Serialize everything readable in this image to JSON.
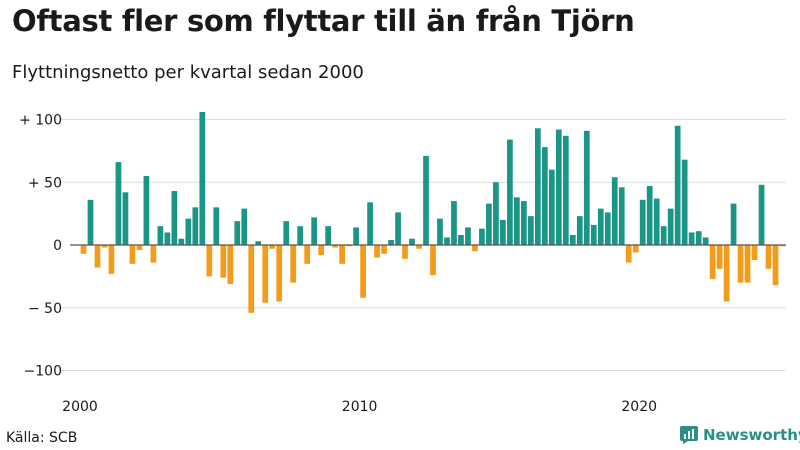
{
  "title": "Oftast fler som flyttar till än från Tjörn",
  "subtitle": "Flyttningsnetto per kvartal sedan 2000",
  "source": "Källa: SCB",
  "brand": {
    "name": "Newsworthy",
    "icon": "bar-chart-logo-icon"
  },
  "colors": {
    "positive": "#1b9586",
    "negative": "#f39c1b",
    "axis": "#555555",
    "grid": "#dddddd"
  },
  "chart_data": {
    "type": "bar",
    "x_start": "2000 Q1",
    "frequency": "quarterly",
    "ylim": [
      -100,
      110
    ],
    "y_ticks": [
      {
        "value": 100,
        "label": "+ 100"
      },
      {
        "value": 50,
        "label": "+  50"
      },
      {
        "value": 0,
        "label": "0"
      },
      {
        "value": -50,
        "label": "− 50"
      },
      {
        "value": -100,
        "label": "−100"
      }
    ],
    "x_ticks": [
      {
        "label": "2000",
        "year": 2000
      },
      {
        "label": "2010",
        "year": 2010
      },
      {
        "label": "2020",
        "year": 2020
      }
    ],
    "values": [
      -7,
      36,
      -18,
      -2,
      -23,
      66,
      42,
      -15,
      -4,
      55,
      -14,
      15,
      10,
      43,
      5,
      21,
      30,
      106,
      -25,
      30,
      -26,
      -31,
      19,
      29,
      -54,
      3,
      -46,
      -3,
      -45,
      19,
      -30,
      15,
      -15,
      22,
      -8,
      15,
      -2,
      -15,
      -1,
      14,
      -42,
      34,
      -10,
      -7,
      4,
      26,
      -11,
      5,
      -3,
      71,
      -24,
      21,
      6,
      35,
      8,
      14,
      -5,
      13,
      33,
      50,
      20,
      84,
      38,
      35,
      23,
      93,
      78,
      60,
      92,
      87,
      8,
      23,
      91,
      16,
      29,
      26,
      54,
      46,
      -14,
      -6,
      36,
      47,
      37,
      15,
      29,
      95,
      68,
      10,
      11,
      6,
      -27,
      -19,
      -45,
      33,
      -30,
      -30,
      -12,
      48,
      -19,
      -32,
      -1
    ]
  }
}
